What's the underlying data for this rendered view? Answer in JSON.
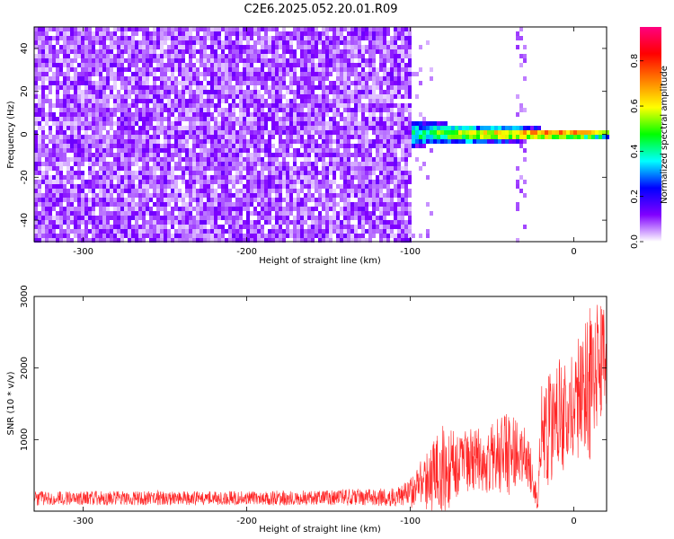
{
  "title": "C2E6.2025.052.20.01.R09",
  "chart_data": [
    {
      "type": "heatmap",
      "xlabel": "Height of straight line (km)",
      "ylabel": "Frequency (Hz)",
      "xlim": [
        -330,
        20
      ],
      "ylim": [
        -50,
        50
      ],
      "xticks": [
        -300,
        -200,
        -100,
        0
      ],
      "yticks": [
        -40,
        -20,
        0,
        20,
        40
      ],
      "colorbar": {
        "label": "Normalized spectral amplitude",
        "range": [
          0,
          0.95
        ],
        "ticks": [
          0.0,
          0.2,
          0.4,
          0.6,
          0.8
        ],
        "colormap": [
          "#ffffff",
          "#8000ff",
          "#0000ff",
          "#00ffff",
          "#00ff00",
          "#ffff00",
          "#ff8000",
          "#ff0000",
          "#ff0080"
        ]
      },
      "features": {
        "noise_region_x": [
          -330,
          -100
        ],
        "noise_level": 0.12,
        "signal_band_start_x": -105,
        "signal_band_center_hz": 0,
        "signal_band_halfwidth_hz": [
          6,
          1.5
        ],
        "vertical_spikes_x": [
          -32,
          -28
        ]
      }
    },
    {
      "type": "line",
      "xlabel": "Height of straight line (km)",
      "ylabel": "SNR (10 * v/v)",
      "xlim": [
        -330,
        20
      ],
      "ylim": [
        0,
        3000
      ],
      "xticks": [
        -300,
        -200,
        -100,
        0
      ],
      "yticks": [
        1000,
        2000,
        3000
      ],
      "color": "#ff0000",
      "series": [
        {
          "x": [
            -330,
            -300,
            -250,
            -200,
            -150,
            -110,
            -100,
            -90,
            -80,
            -70,
            -60,
            -50,
            -40,
            -30,
            -25,
            -22,
            -20,
            -15,
            -10,
            -5,
            0,
            5,
            10,
            15,
            20
          ],
          "baseline": [
            180,
            180,
            180,
            180,
            190,
            200,
            250,
            380,
            520,
            640,
            720,
            760,
            780,
            820,
            500,
            150,
            1000,
            1200,
            1300,
            1400,
            1500,
            1600,
            1800,
            2000,
            2100
          ],
          "amplitude": [
            100,
            100,
            100,
            100,
            110,
            130,
            200,
            420,
            700,
            450,
            450,
            520,
            600,
            400,
            300,
            150,
            800,
            850,
            800,
            800,
            700,
            1000,
            1100,
            900,
            700
          ]
        }
      ]
    }
  ]
}
